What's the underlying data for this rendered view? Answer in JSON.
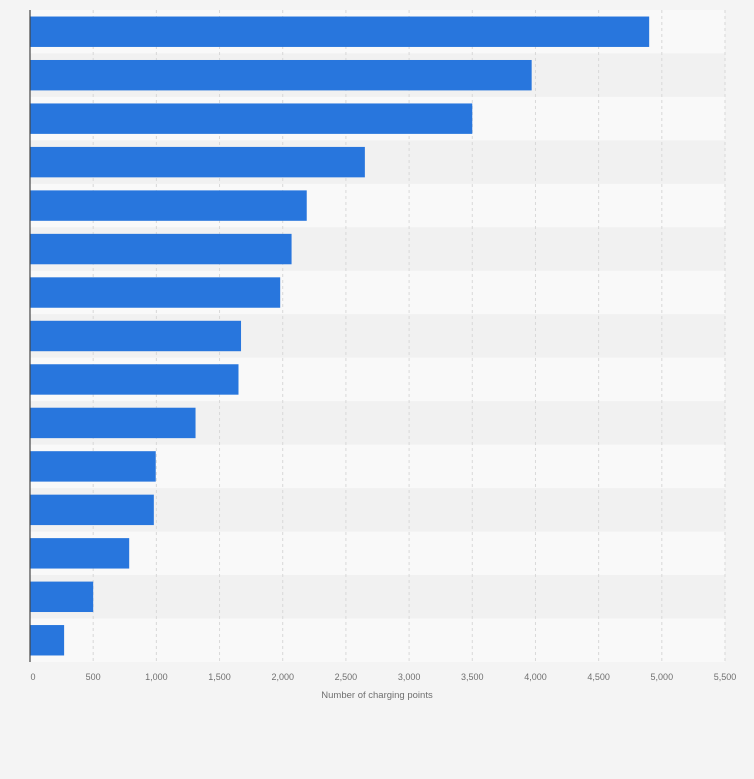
{
  "chart_data": {
    "type": "bar",
    "orientation": "horizontal",
    "title": "",
    "xlabel": "Number of charging points",
    "ylabel": "",
    "xlim": [
      0,
      5500
    ],
    "xticks": [
      0,
      500,
      1000,
      1500,
      2000,
      2500,
      3000,
      3500,
      4000,
      4500,
      5000,
      5500
    ],
    "xtick_labels": [
      "0",
      "500",
      "1,000",
      "1,500",
      "2,000",
      "2,500",
      "3,000",
      "3,500",
      "4,000",
      "4,500",
      "5,000",
      "5,500"
    ],
    "values": [
      4900,
      3970,
      3500,
      2650,
      2190,
      2070,
      1980,
      1670,
      1650,
      1310,
      995,
      980,
      785,
      500,
      270
    ],
    "grid": true,
    "legend": "none",
    "colors": {
      "bar": "#2876dd",
      "band_light": "#f9f9f9",
      "band_dark": "#f1f1f1",
      "background": "#f4f4f4",
      "axis": "#444444"
    }
  }
}
